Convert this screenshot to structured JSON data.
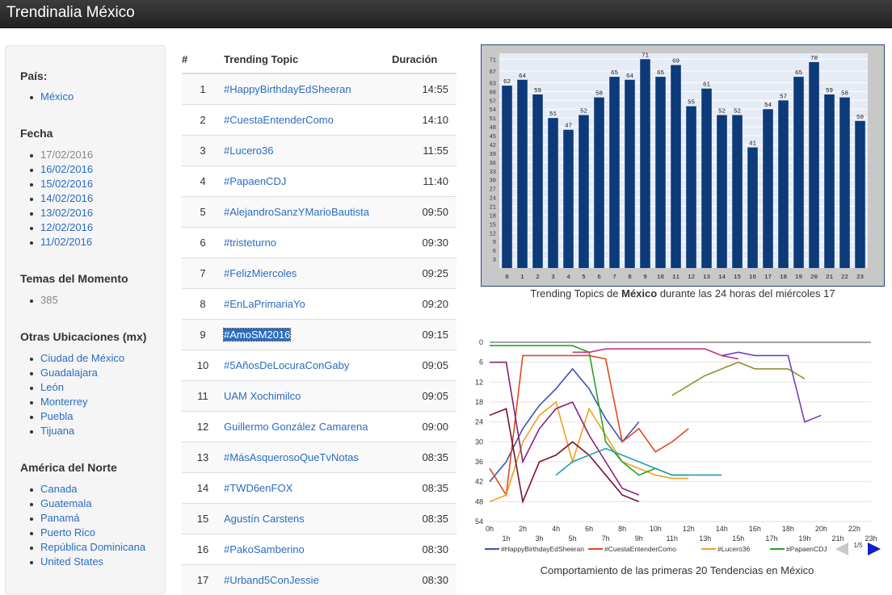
{
  "brand": "Trendinalia México",
  "sidebar": {
    "pais_title": "País:",
    "pais": [
      "México"
    ],
    "fecha_title": "Fecha",
    "fecha_current": "17/02/2016",
    "fechas": [
      "16/02/2016",
      "15/02/2016",
      "14/02/2016",
      "13/02/2016",
      "12/02/2016",
      "11/02/2016"
    ],
    "temas_title": "Temas del Momento",
    "temas_count": "385",
    "otras_title": "Otras Ubicaciones (mx)",
    "otras": [
      "Ciudad de México",
      "Guadalajara",
      "León",
      "Monterrey",
      "Puebla",
      "Tijuana"
    ],
    "america_title": "América del Norte",
    "america": [
      "Canada",
      "Guatemala",
      "Panamá",
      "Puerto Rico",
      "República Dominicana",
      "United States"
    ]
  },
  "table": {
    "headers": [
      "#",
      "Trending Topic",
      "Duración"
    ],
    "rows": [
      [
        "1",
        "#HappyBirthdayEdSheeran",
        "14:55"
      ],
      [
        "2",
        "#CuestaEntenderComo",
        "14:10"
      ],
      [
        "3",
        "#Lucero36",
        "11:55"
      ],
      [
        "4",
        "#PapaenCDJ",
        "11:40"
      ],
      [
        "5",
        "#AlejandroSanzYMarioBautista",
        "09:50"
      ],
      [
        "6",
        "#tristeturno",
        "09:30"
      ],
      [
        "7",
        "#FelizMiercoles",
        "09:25"
      ],
      [
        "8",
        "#EnLaPrimariaYo",
        "09:20"
      ],
      [
        "9",
        "#AmoSM2016",
        "09:15"
      ],
      [
        "10",
        "#5AñosDeLocuraConGaby",
        "09:05"
      ],
      [
        "11",
        "UAM Xochimilco",
        "09:05"
      ],
      [
        "12",
        "Guillermo González Camarena",
        "09:00"
      ],
      [
        "13",
        "#MásAsquerosoQueTvNotas",
        "08:35"
      ],
      [
        "14",
        "#TWD6enFOX",
        "08:35"
      ],
      [
        "15",
        "Agustín Carstens",
        "08:35"
      ],
      [
        "16",
        "#PakoSamberino",
        "08:30"
      ],
      [
        "17",
        "#Urband5ConJessie",
        "08:30"
      ]
    ]
  },
  "caption1": {
    "pre": "Trending Topics de ",
    "bold": "México",
    "post": " durante las 24 horas del miércoles 17"
  },
  "caption2": "Comportamiento de las primeras 20 Tendencias en México",
  "pager": "1/5",
  "chart_data": [
    {
      "type": "bar",
      "categories": [
        "0",
        "1",
        "2",
        "3",
        "4",
        "5",
        "6",
        "7",
        "8",
        "9",
        "10",
        "11",
        "12",
        "13",
        "14",
        "15",
        "16",
        "17",
        "18",
        "19",
        "20",
        "21",
        "22",
        "23"
      ],
      "values": [
        62,
        64,
        59,
        51,
        47,
        52,
        58,
        65,
        64,
        71,
        65,
        69,
        55,
        61,
        52,
        52,
        41,
        54,
        57,
        65,
        70,
        59,
        58,
        50
      ],
      "y_ticks": [
        "3",
        "6",
        "9",
        "12",
        "15",
        "18",
        "21",
        "24",
        "27",
        "30",
        "33",
        "36",
        "39",
        "42",
        "45",
        "48",
        "51",
        "54",
        "57",
        "60",
        "63",
        "67",
        "71"
      ],
      "ylim": [
        0,
        73
      ],
      "bar_color": "#0d3a78"
    },
    {
      "type": "line",
      "x_ticks": [
        "0h",
        "1h",
        "2h",
        "3h",
        "4h",
        "5h",
        "6h",
        "7h",
        "8h",
        "9h",
        "10h",
        "11h",
        "12h",
        "13h",
        "14h",
        "15h",
        "16h",
        "17h",
        "18h",
        "19h",
        "20h",
        "21h",
        "22h",
        "23h"
      ],
      "y_ticks": [
        "0",
        "6",
        "12",
        "18",
        "24",
        "30",
        "36",
        "42",
        "48",
        "54"
      ],
      "ylim": [
        0,
        54
      ],
      "y_inverted": true,
      "legend": [
        "#HappyBirthdayEdSheeran",
        "#CuestaEntenderComo",
        "#Lucero36",
        "#PapaenCDJ"
      ],
      "series": [
        {
          "name": "#HappyBirthdayEdSheeran",
          "color": "#3a55b8",
          "x": [
            0,
            1,
            2,
            3,
            4,
            5,
            6,
            7,
            8,
            9
          ],
          "y": [
            42,
            36,
            26,
            19,
            14,
            8,
            14,
            23,
            30,
            24
          ]
        },
        {
          "name": "#CuestaEntenderComo",
          "color": "#e04a1c",
          "x": [
            0,
            1,
            2,
            3,
            4,
            5,
            6,
            7,
            8,
            9,
            10,
            11,
            12
          ],
          "y": [
            38,
            46,
            4,
            4,
            4,
            4,
            4,
            5,
            30,
            26,
            33,
            30,
            26
          ]
        },
        {
          "name": "#Lucero36",
          "color": "#f0a020",
          "x": [
            0,
            1,
            2,
            3,
            4,
            5,
            6,
            7,
            8,
            9,
            10,
            11,
            12
          ],
          "y": [
            48,
            46,
            30,
            22,
            18,
            36,
            20,
            28,
            36,
            38,
            40,
            41,
            41
          ]
        },
        {
          "name": "#PapaenCDJ",
          "color": "#2aa02a",
          "x": [
            0,
            1,
            2,
            3,
            4,
            5,
            6,
            7,
            8,
            9,
            10,
            11,
            12
          ],
          "y": [
            1,
            1,
            1,
            1,
            1,
            1,
            3,
            30,
            36,
            40,
            38,
            40,
            40
          ]
        },
        {
          "color": "#8a1f7a",
          "x": [
            0,
            1,
            2,
            3,
            4,
            5,
            6,
            7,
            8,
            9
          ],
          "y": [
            6,
            6,
            36,
            26,
            20,
            18,
            28,
            36,
            44,
            46
          ]
        },
        {
          "color": "#c8348a",
          "x": [
            5,
            6,
            7,
            8,
            9,
            10,
            11,
            12,
            13,
            14,
            15
          ],
          "y": [
            3,
            3,
            2,
            2,
            2,
            2,
            2,
            2,
            2,
            4,
            5
          ]
        },
        {
          "color": "#7a1030",
          "x": [
            0,
            1,
            2,
            3,
            4,
            5,
            6,
            7,
            8,
            9
          ],
          "y": [
            22,
            20,
            48,
            36,
            34,
            30,
            34,
            40,
            46,
            48
          ]
        },
        {
          "color": "#20a0b0",
          "x": [
            4,
            5,
            6,
            7,
            8,
            9,
            10,
            11,
            12,
            13,
            14
          ],
          "y": [
            40,
            36,
            34,
            32,
            34,
            36,
            38,
            40,
            40,
            40,
            40
          ]
        },
        {
          "color": "#909030",
          "x": [
            11,
            12,
            13,
            14,
            15,
            16,
            17,
            18,
            19
          ],
          "y": [
            16,
            13,
            10,
            8,
            6,
            8,
            8,
            8,
            11
          ]
        },
        {
          "color": "#7040c0",
          "x": [
            14,
            15,
            16,
            17,
            18,
            19,
            20
          ],
          "y": [
            4,
            3,
            4,
            4,
            4,
            24,
            22
          ]
        }
      ]
    }
  ]
}
